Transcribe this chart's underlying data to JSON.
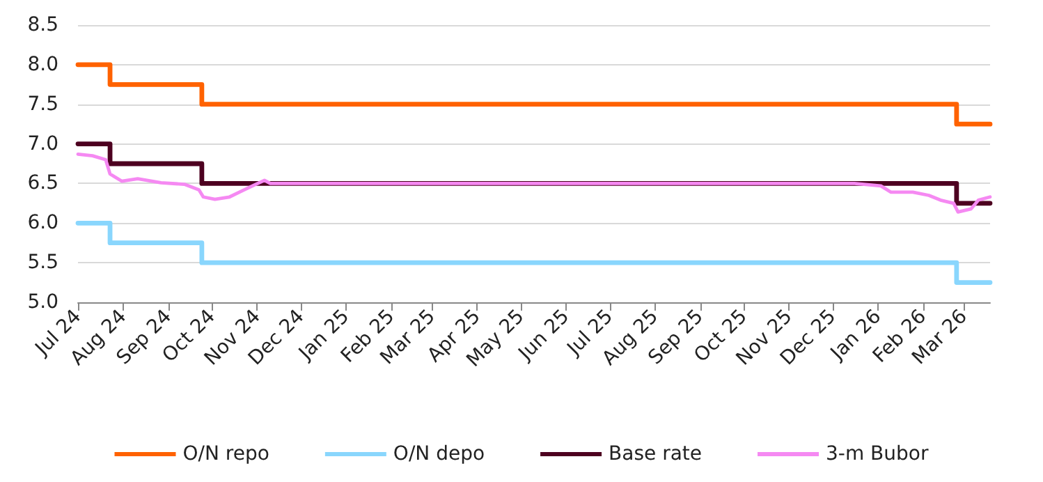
{
  "chart_data": {
    "type": "line",
    "xlim": [
      "2024-07-01",
      "2026-03-19"
    ],
    "xticks": [
      {
        "value": "2024-07-01",
        "label": "Jul 24"
      },
      {
        "value": "2024-08-01",
        "label": "Aug 24"
      },
      {
        "value": "2024-09-01",
        "label": "Sep 24"
      },
      {
        "value": "2024-10-01",
        "label": "Oct 24"
      },
      {
        "value": "2024-11-01",
        "label": "Nov 24"
      },
      {
        "value": "2024-12-01",
        "label": "Dec 24"
      },
      {
        "value": "2025-01-01",
        "label": "Jan 25"
      },
      {
        "value": "2025-02-01",
        "label": "Feb 25"
      },
      {
        "value": "2025-03-01",
        "label": "Mar 25"
      },
      {
        "value": "2025-04-01",
        "label": "Apr 25"
      },
      {
        "value": "2025-05-01",
        "label": "May 25"
      },
      {
        "value": "2025-06-01",
        "label": "Jun 25"
      },
      {
        "value": "2025-07-01",
        "label": "Jul 25"
      },
      {
        "value": "2025-08-01",
        "label": "Aug 25"
      },
      {
        "value": "2025-09-01",
        "label": "Sep 25"
      },
      {
        "value": "2025-10-01",
        "label": "Oct 25"
      },
      {
        "value": "2025-11-01",
        "label": "Nov 25"
      },
      {
        "value": "2025-12-01",
        "label": "Dec 25"
      },
      {
        "value": "2026-01-01",
        "label": "Jan 26"
      },
      {
        "value": "2026-02-01",
        "label": "Feb 26"
      },
      {
        "value": "2026-03-01",
        "label": "Mar 26"
      }
    ],
    "ylim": [
      5.0,
      8.5
    ],
    "yticks": [
      {
        "value": 5,
        "label": "5.0"
      },
      {
        "value": 5.5,
        "label": "5.5"
      },
      {
        "value": 6,
        "label": "6.0"
      },
      {
        "value": 6.5,
        "label": "6.5"
      },
      {
        "value": 7,
        "label": "7.0"
      },
      {
        "value": 7.5,
        "label": "7.5"
      },
      {
        "value": 8,
        "label": "8.0"
      },
      {
        "value": 8.5,
        "label": "8.5"
      }
    ],
    "grid": "y",
    "legend": "bottom",
    "marker": "none",
    "series": [
      {
        "name": "O/N repo",
        "type": "step",
        "color": "#ff6200",
        "x": [
          "2024-07-01",
          "2024-07-23",
          "2024-09-24",
          "2026-02-24",
          "2026-03-19"
        ],
        "values": [
          8.0,
          7.75,
          7.5,
          7.25,
          7.25
        ]
      },
      {
        "name": "O/N depo",
        "type": "step",
        "color": "#89d6fd",
        "x": [
          "2024-07-01",
          "2024-07-23",
          "2024-09-24",
          "2026-02-24",
          "2026-03-19"
        ],
        "values": [
          6.0,
          5.75,
          5.5,
          5.25,
          5.25
        ]
      },
      {
        "name": "Base rate",
        "type": "step",
        "color": "#4d0020",
        "x": [
          "2024-07-01",
          "2024-07-23",
          "2024-09-24",
          "2026-02-24",
          "2026-03-19"
        ],
        "values": [
          7.0,
          6.75,
          6.5,
          6.25,
          6.25
        ]
      },
      {
        "name": "3-m Bubor",
        "type": "line",
        "color": "#f589f2",
        "x": [
          "2024-07-01",
          "2024-07-11",
          "2024-07-20",
          "2024-07-23",
          "2024-07-31",
          "2024-08-11",
          "2024-08-27",
          "2024-09-12",
          "2024-09-22",
          "2024-09-25",
          "2024-10-03",
          "2024-10-13",
          "2024-10-22",
          "2024-10-30",
          "2024-11-06",
          "2024-11-10",
          "2025-12-16",
          "2026-01-03",
          "2026-01-10",
          "2026-01-25",
          "2026-02-05",
          "2026-02-13",
          "2026-02-22",
          "2026-02-25",
          "2026-03-06",
          "2026-03-11",
          "2026-03-19"
        ],
        "values": [
          6.87,
          6.85,
          6.8,
          6.62,
          6.53,
          6.56,
          6.51,
          6.49,
          6.42,
          6.33,
          6.3,
          6.33,
          6.41,
          6.48,
          6.54,
          6.5,
          6.5,
          6.47,
          6.39,
          6.39,
          6.35,
          6.29,
          6.25,
          6.14,
          6.18,
          6.29,
          6.33
        ]
      }
    ]
  }
}
